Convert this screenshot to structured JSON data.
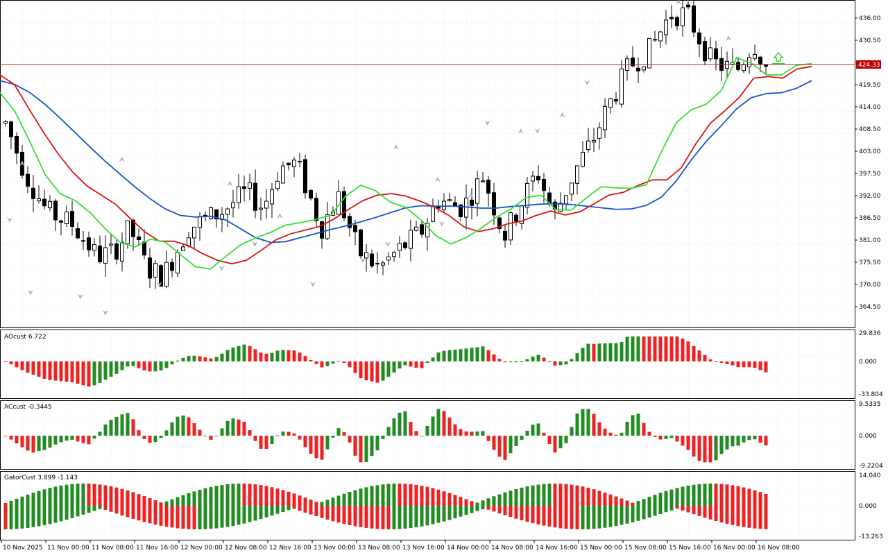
{
  "chart_data": [
    {
      "type": "candlestick",
      "panel": "main",
      "y_range": [
        359.0,
        441.0
      ],
      "y_ticks": [
        "436.00",
        "430.50",
        "425.00",
        "419.50",
        "414.00",
        "408.50",
        "403.00",
        "397.50",
        "392.00",
        "386.50",
        "381.00",
        "375.50",
        "370.00",
        "364.50"
      ],
      "current_price": "424.33",
      "candle_count": 138,
      "colors": {
        "up_body": "#ffffff",
        "down_body": "#000000",
        "wick": "#000000",
        "price_line": "#b22222",
        "price_badge": "#c00000",
        "fractal": "#9aa0a6",
        "signal_arrow": "#33cc33"
      },
      "moving_averages": [
        {
          "color": "#1155cc",
          "values": [
            420.5,
            419.5,
            417.5,
            414.6,
            411.2,
            407.6,
            404.0,
            400.5,
            397.3,
            394.1,
            391.2,
            388.7,
            387.1,
            386.7,
            386.9,
            386.0,
            383.8,
            381.6,
            380.4,
            380.6,
            381.6,
            382.6,
            383.6,
            384.5,
            385.5,
            386.6,
            387.8,
            389.0,
            389.5,
            389.4,
            389.4,
            389.2,
            388.9,
            388.9,
            389.3,
            389.6,
            389.9,
            390.0,
            389.8,
            389.4,
            389.0,
            388.6,
            388.7,
            389.6,
            391.6,
            395.7,
            400.9,
            405.5,
            409.4,
            413.5,
            416.3,
            417.3,
            417.5,
            418.6,
            420.5
          ]
        },
        {
          "color": "#dd1111",
          "values": [
            421.9,
            419.5,
            413.5,
            407.7,
            402.4,
            397.9,
            394.4,
            392.1,
            389.8,
            386.3,
            383.0,
            380.7,
            380.7,
            379.6,
            377.6,
            376.0,
            375.1,
            376.0,
            378.4,
            381.0,
            382.5,
            383.4,
            384.3,
            386.1,
            388.5,
            390.7,
            392.1,
            392.5,
            391.9,
            390.6,
            389.1,
            387.0,
            384.3,
            383.1,
            383.8,
            385.0,
            385.7,
            387.1,
            388.2,
            387.2,
            388.0,
            390.0,
            392.1,
            392.8,
            394.5,
            395.9,
            395.9,
            398.9,
            404.8,
            409.9,
            413.0,
            416.3,
            421.1,
            421.5,
            421.1,
            423.4,
            424.0
          ]
        },
        {
          "color": "#33dd33",
          "values": [
            417.5,
            412.8,
            405.3,
            397.2,
            392.5,
            390.8,
            387.8,
            383.8,
            380.4,
            379.3,
            381.2,
            380.5,
            377.4,
            374.4,
            373.8,
            376.9,
            379.8,
            381.5,
            382.9,
            384.7,
            385.3,
            386.1,
            387.1,
            391.9,
            394.6,
            393.2,
            390.3,
            389.1,
            386.0,
            382.1,
            380.0,
            381.6,
            383.9,
            386.6,
            388.7,
            391.5,
            392.1,
            388.5,
            388.4,
            391.4,
            394.2,
            393.9,
            393.8,
            394.7,
            402.9,
            410.1,
            413.3,
            414.7,
            418.1,
            426.2,
            424.8,
            421.9,
            421.9,
            424.3,
            424.7
          ]
        }
      ]
    },
    {
      "type": "histogram",
      "panel": "ao",
      "label": "AOcust 6.722",
      "y_range": [
        -33.804,
        29.836
      ],
      "y_ticks": [
        "29.836",
        "0.000",
        "-33.804"
      ]
    },
    {
      "type": "histogram",
      "panel": "ac",
      "label": "ACcust -0.3445",
      "y_range": [
        -9.2204,
        9.5335
      ],
      "y_ticks": [
        "9.5335",
        "0.000",
        "-9.2204"
      ]
    },
    {
      "type": "histogram",
      "panel": "gator",
      "label": "GatorCust 3.899 -1.143",
      "y_range": [
        -13.263,
        14.04
      ],
      "y_ticks": [
        "14.040",
        "0.000",
        "-13.263"
      ]
    }
  ],
  "x_axis_labels": [
    "10 Nov 2025",
    "11 Nov 00:00",
    "11 Nov 08:00",
    "11 Nov 16:00",
    "12 Nov 00:00",
    "12 Nov 08:00",
    "12 Nov 16:00",
    "13 Nov 00:00",
    "13 Nov 08:00",
    "13 Nov 16:00",
    "14 Nov 00:00",
    "14 Nov 08:00",
    "14 Nov 16:00",
    "15 Nov 00:00",
    "15 Nov 08:00",
    "15 Nov 16:00",
    "16 Nov 00:00",
    "16 Nov 08:00"
  ]
}
